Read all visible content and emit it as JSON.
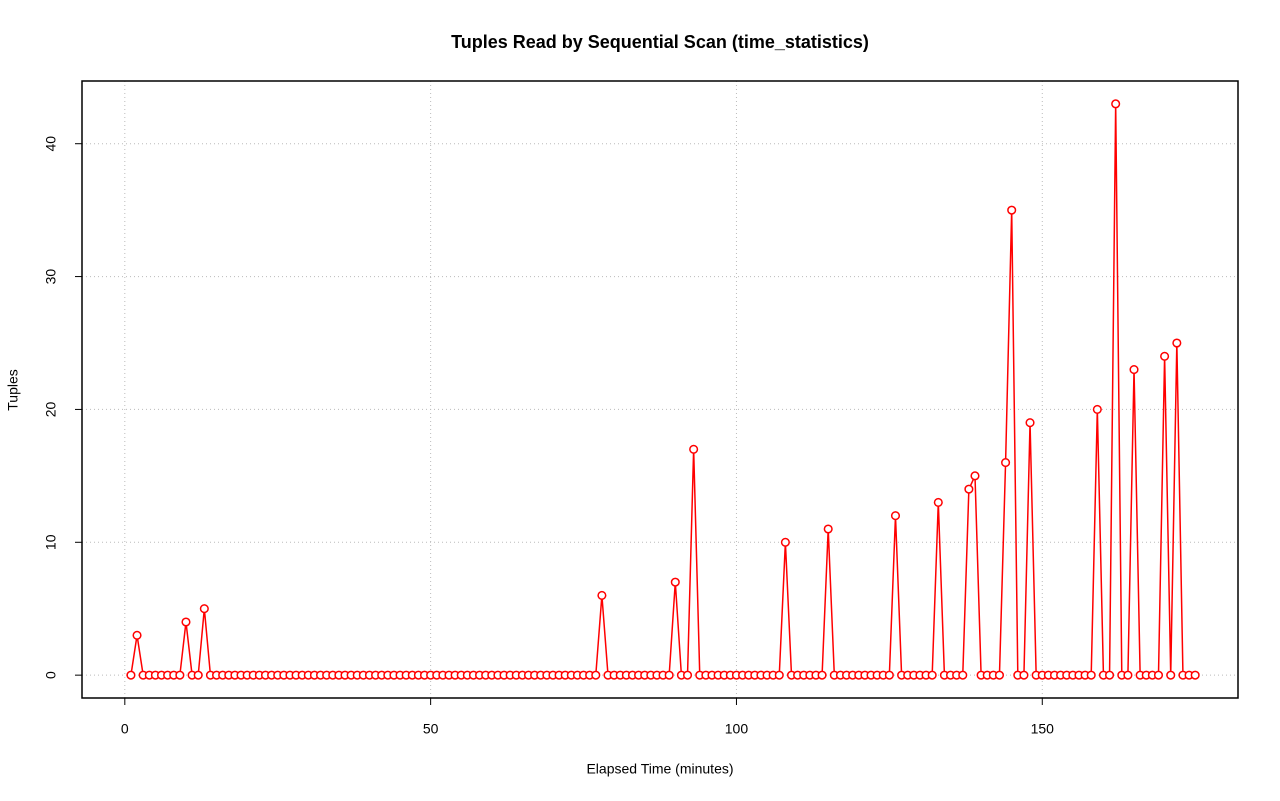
{
  "chart_data": {
    "type": "line",
    "title": "Tuples Read by Sequential Scan (time_statistics)",
    "xlabel": "Elapsed Time (minutes)",
    "ylabel": "Tuples",
    "x": [
      1,
      2,
      3,
      4,
      5,
      6,
      7,
      8,
      9,
      10,
      11,
      12,
      13,
      14,
      15,
      16,
      17,
      18,
      19,
      20,
      21,
      22,
      23,
      24,
      25,
      26,
      27,
      28,
      29,
      30,
      31,
      32,
      33,
      34,
      35,
      36,
      37,
      38,
      39,
      40,
      41,
      42,
      43,
      44,
      45,
      46,
      47,
      48,
      49,
      50,
      51,
      52,
      53,
      54,
      55,
      56,
      57,
      58,
      59,
      60,
      61,
      62,
      63,
      64,
      65,
      66,
      67,
      68,
      69,
      70,
      71,
      72,
      73,
      74,
      75,
      76,
      77,
      78,
      79,
      80,
      81,
      82,
      83,
      84,
      85,
      86,
      87,
      88,
      89,
      90,
      91,
      92,
      93,
      94,
      95,
      96,
      97,
      98,
      99,
      100,
      101,
      102,
      103,
      104,
      105,
      106,
      107,
      108,
      109,
      110,
      111,
      112,
      113,
      114,
      115,
      116,
      117,
      118,
      119,
      120,
      121,
      122,
      123,
      124,
      125,
      126,
      127,
      128,
      129,
      130,
      131,
      132,
      133,
      134,
      135,
      136,
      137,
      138,
      139,
      140,
      141,
      142,
      143,
      144,
      145,
      146,
      147,
      148,
      149,
      150,
      151,
      152,
      153,
      154,
      155,
      156,
      157,
      158,
      159,
      160,
      161,
      162,
      163,
      164,
      165,
      166,
      167,
      168,
      169,
      170,
      171,
      172,
      173,
      174,
      175
    ],
    "series": [
      {
        "name": "Tuples",
        "color": "red",
        "values": [
          0,
          3,
          0,
          0,
          0,
          0,
          0,
          0,
          0,
          4,
          0,
          0,
          5,
          0,
          0,
          0,
          0,
          0,
          0,
          0,
          0,
          0,
          0,
          0,
          0,
          0,
          0,
          0,
          0,
          0,
          0,
          0,
          0,
          0,
          0,
          0,
          0,
          0,
          0,
          0,
          0,
          0,
          0,
          0,
          0,
          0,
          0,
          0,
          0,
          0,
          0,
          0,
          0,
          0,
          0,
          0,
          0,
          0,
          0,
          0,
          0,
          0,
          0,
          0,
          0,
          0,
          0,
          0,
          0,
          0,
          0,
          0,
          0,
          0,
          0,
          0,
          0,
          6,
          0,
          0,
          0,
          0,
          0,
          0,
          0,
          0,
          0,
          0,
          0,
          7,
          0,
          0,
          17,
          0,
          0,
          0,
          0,
          0,
          0,
          0,
          0,
          0,
          0,
          0,
          0,
          0,
          0,
          10,
          0,
          0,
          0,
          0,
          0,
          0,
          11,
          0,
          0,
          0,
          0,
          0,
          0,
          0,
          0,
          0,
          0,
          12,
          0,
          0,
          0,
          0,
          0,
          0,
          13,
          0,
          0,
          0,
          0,
          14,
          15,
          0,
          0,
          0,
          0,
          16,
          35,
          0,
          0,
          19,
          0,
          0,
          0,
          0,
          0,
          0,
          0,
          0,
          0,
          0,
          20,
          0,
          0,
          43,
          0,
          0,
          23,
          0,
          0,
          0,
          0,
          24,
          0,
          25,
          0,
          0,
          0
        ]
      }
    ],
    "xlim": [
      -7,
      182
    ],
    "ylim": [
      -1.72,
      44.72
    ],
    "xticks": [
      0,
      50,
      100,
      150
    ],
    "yticks": [
      0,
      10,
      20,
      30,
      40
    ],
    "grid": true,
    "markers": true
  }
}
